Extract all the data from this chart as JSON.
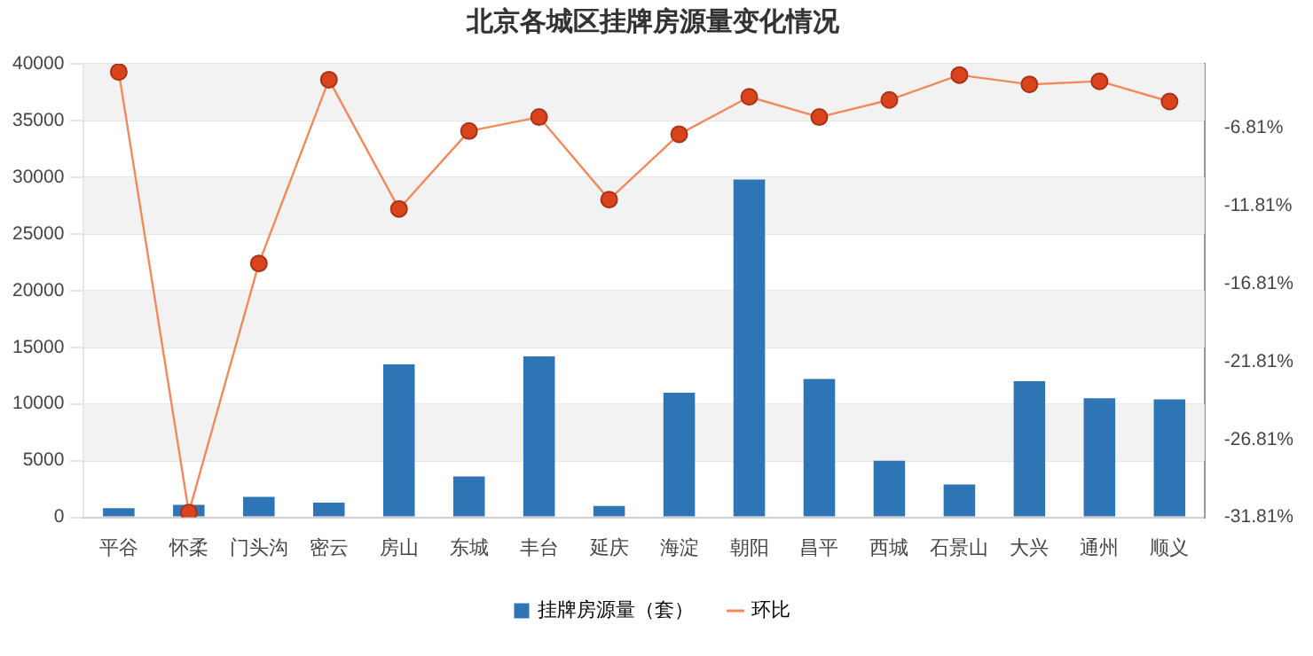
{
  "chart_data": {
    "type": "bar",
    "title": "北京各城区挂牌房源量变化情况",
    "categories": [
      "平谷",
      "怀柔",
      "门头沟",
      "密云",
      "房山",
      "东城",
      "丰台",
      "延庆",
      "海淀",
      "朝阳",
      "昌平",
      "西城",
      "石景山",
      "大兴",
      "通州",
      "顺义"
    ],
    "series": [
      {
        "name": "挂牌房源量（套）",
        "color": "#2e75b6",
        "values": [
          800,
          1100,
          1800,
          1300,
          13500,
          3600,
          14200,
          1000,
          11000,
          29800,
          12200,
          5000,
          2900,
          12000,
          10500,
          10400
        ]
      },
      {
        "name": "环比",
        "type": "line",
        "axis": "y2",
        "color": "#f08a5d",
        "marker": "circle",
        "values": [
          -3.2,
          -31.5,
          -15.5,
          -3.7,
          -12.0,
          -7.0,
          -6.1,
          -11.4,
          -7.2,
          -4.8,
          -6.1,
          -5.0,
          -3.4,
          -4.0,
          -3.8,
          -5.1
        ]
      }
    ],
    "ylim": [
      0,
      40000
    ],
    "yticks": [
      0,
      5000,
      10000,
      15000,
      20000,
      25000,
      30000,
      35000,
      40000
    ],
    "y2lim": [
      -31.81,
      -2.68
    ],
    "y2ticks": [
      {
        "value": -31.81,
        "label": "-31.81%"
      },
      {
        "value": -26.81,
        "label": "-26.81%"
      },
      {
        "value": -21.81,
        "label": "-21.81%"
      },
      {
        "value": -16.81,
        "label": "-16.81%"
      },
      {
        "value": -11.81,
        "label": "-11.81%"
      },
      {
        "value": -6.81,
        "label": "-6.81%"
      }
    ],
    "grid": "y",
    "legend": "bottom"
  }
}
